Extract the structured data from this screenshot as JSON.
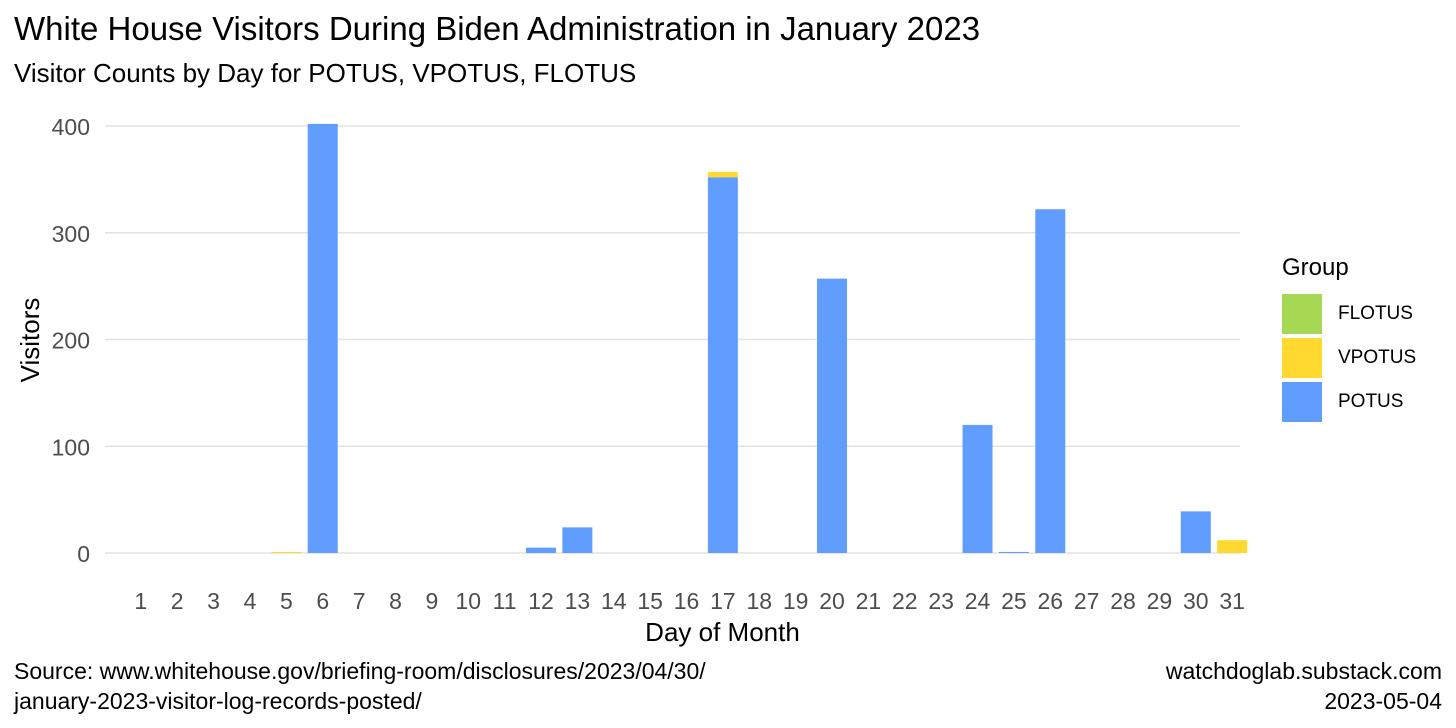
{
  "chart_data": {
    "type": "bar",
    "stacked": true,
    "title": "White House Visitors During Biden Administration in January 2023",
    "subtitle": "Visitor Counts by Day for POTUS, VPOTUS, FLOTUS",
    "xlabel": "Day of Month",
    "ylabel": "Visitors",
    "ylim": [
      0,
      430
    ],
    "yticks": [
      0,
      100,
      200,
      300,
      400
    ],
    "grid": true,
    "legend_position": "right",
    "legend_title": "Group",
    "categories": [
      "1",
      "2",
      "3",
      "4",
      "5",
      "6",
      "7",
      "8",
      "9",
      "10",
      "11",
      "12",
      "13",
      "14",
      "15",
      "16",
      "17",
      "18",
      "19",
      "20",
      "21",
      "22",
      "23",
      "24",
      "25",
      "26",
      "27",
      "28",
      "29",
      "30",
      "31"
    ],
    "series": [
      {
        "name": "POTUS",
        "color": "#619CFF",
        "values": [
          0,
          0,
          0,
          0,
          0,
          402,
          0,
          0,
          0,
          0,
          0,
          5,
          24,
          0,
          0,
          0,
          352,
          0,
          0,
          257,
          0,
          0,
          0,
          120,
          1,
          322,
          0,
          0,
          0,
          39,
          0
        ]
      },
      {
        "name": "VPOTUS",
        "color": "#FFD92F",
        "values": [
          0,
          0,
          0,
          0,
          1,
          0,
          0,
          0,
          0,
          0,
          0,
          0,
          0,
          0,
          0,
          0,
          5,
          0,
          0,
          0,
          0,
          0,
          0,
          0,
          0,
          0,
          0,
          0,
          0,
          0,
          12
        ]
      },
      {
        "name": "FLOTUS",
        "color": "#A6D854",
        "values": [
          0,
          0,
          0,
          0,
          0,
          0,
          0,
          0,
          0,
          0,
          0,
          0,
          0,
          0,
          0,
          0,
          0,
          0,
          0,
          0,
          0,
          0,
          0,
          0,
          0,
          0,
          0,
          0,
          0,
          0,
          0
        ]
      }
    ],
    "legend_order": [
      "FLOTUS",
      "VPOTUS",
      "POTUS"
    ]
  },
  "caption": {
    "source_line1": "Source: www.whitehouse.gov/briefing-room/disclosures/2023/04/30/",
    "source_line2": "january-2023-visitor-log-records-posted/",
    "site": "watchdoglab.substack.com",
    "date": "2023-05-04"
  }
}
